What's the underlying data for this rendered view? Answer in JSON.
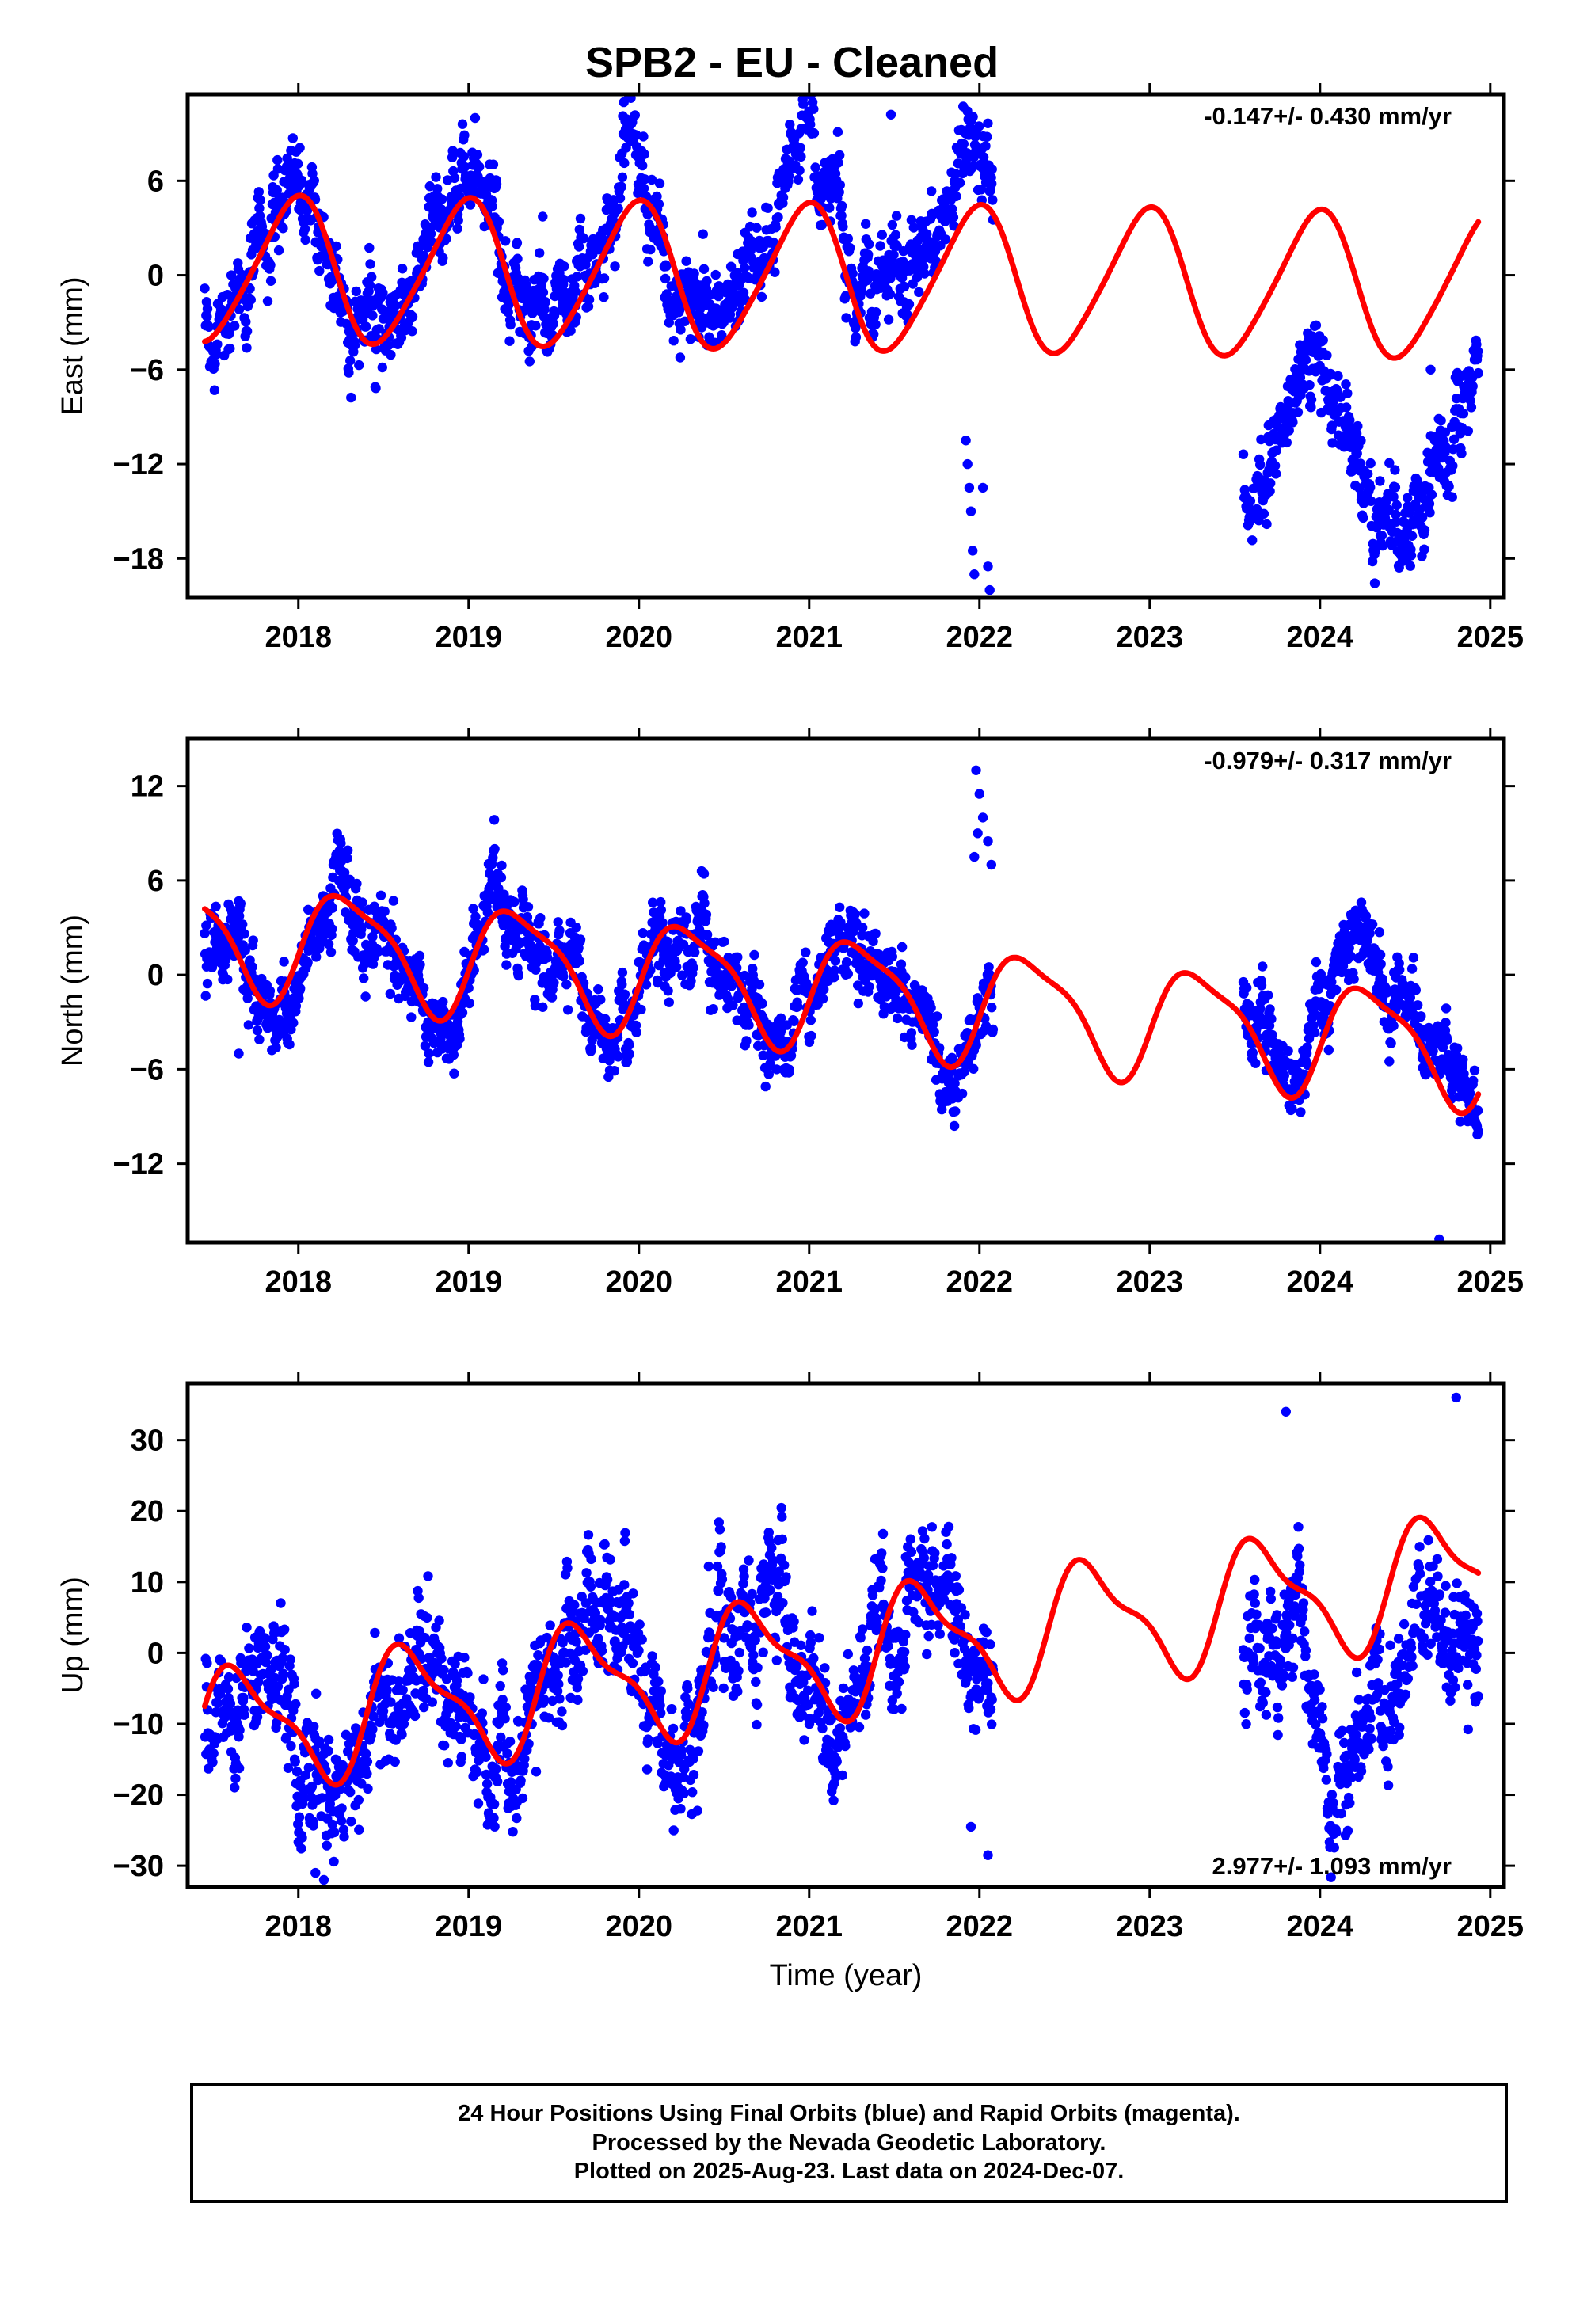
{
  "title": "SPB2  - EU - Cleaned",
  "footer": {
    "line1": "24 Hour Positions Using Final Orbits (blue) and Rapid Orbits (magenta).",
    "line2": "Processed by the Nevada Geodetic Laboratory.",
    "line3": "Plotted on 2025-Aug-23. Last data on 2024-Dec-07."
  },
  "colors": {
    "data": "#0000ff",
    "model": "#ff0000",
    "axis": "#000000"
  },
  "chart_data": [
    {
      "type": "scatter",
      "component": "east",
      "ylabel": "East (mm)",
      "xlabel": "",
      "rate_label": "-0.147+/- 0.430 mm/yr",
      "rate_position": "top-right",
      "xlim": [
        2017.35,
        2025.08
      ],
      "ylim": [
        -20.5,
        11.5
      ],
      "xticks": [
        2018,
        2019,
        2020,
        2021,
        2022,
        2023,
        2024,
        2025
      ],
      "yticks": [
        -18,
        -12,
        -6,
        0,
        6
      ],
      "series": [
        {
          "kind": "points",
          "segments": [
            {
              "start": 2017.45,
              "end": 2022.08,
              "offset": 0.0,
              "amp1": 4.5,
              "phase": 1.8,
              "amp2": 0.8,
              "drift": 0.6,
              "noise": 1.8
            },
            {
              "start": 2023.55,
              "end": 2024.93,
              "offset": -11.2,
              "amp1": 4.5,
              "phase": 1.8,
              "amp2": 0.8,
              "drift": -0.147,
              "noise": 1.8
            }
          ],
          "outliers": [
            [
              2021.92,
              -10.5
            ],
            [
              2021.93,
              -12.0
            ],
            [
              2021.94,
              -13.5
            ],
            [
              2021.95,
              -15.0
            ],
            [
              2021.96,
              -17.5
            ],
            [
              2021.97,
              -19.0
            ],
            [
              2022.02,
              -13.5
            ],
            [
              2022.05,
              -18.5
            ],
            [
              2022.06,
              -20.0
            ],
            [
              2021.48,
              10.2
            ],
            [
              2024.65,
              -6.0
            ]
          ]
        },
        {
          "kind": "model",
          "start": 2017.45,
          "end": 2024.93,
          "offset": 0.35,
          "trend": -0.147,
          "amp1": 4.55,
          "phase": 1.72,
          "amp2": 0.6,
          "phase2": 0.5
        }
      ]
    },
    {
      "type": "scatter",
      "component": "north",
      "ylabel": "North (mm)",
      "xlabel": "",
      "rate_label": "-0.979+/- 0.317 mm/yr",
      "rate_position": "top-right",
      "xlim": [
        2017.35,
        2025.08
      ],
      "ylim": [
        -17.0,
        15.0
      ],
      "xticks": [
        2018,
        2019,
        2020,
        2021,
        2022,
        2023,
        2024,
        2025
      ],
      "yticks": [
        -12,
        -6,
        0,
        6,
        12
      ],
      "series": [
        {
          "kind": "points",
          "segments": [
            {
              "start": 2017.45,
              "end": 2022.08,
              "offset": 2.3,
              "amp1": 3.3,
              "phase": -0.2,
              "amp2": 0.9,
              "drift": -0.98,
              "noise": 1.6
            },
            {
              "start": 2023.55,
              "end": 2024.93,
              "offset": -1.5,
              "amp1": 3.5,
              "phase": -0.2,
              "amp2": 0.9,
              "drift": -0.98,
              "noise": 1.6
            }
          ],
          "outliers": [
            [
              2021.98,
              13.0
            ],
            [
              2022.0,
              11.5
            ],
            [
              2022.02,
              10.0
            ],
            [
              2022.05,
              8.5
            ],
            [
              2021.99,
              9.0
            ],
            [
              2022.07,
              7.0
            ],
            [
              2021.97,
              7.5
            ],
            [
              2024.7,
              -16.8
            ],
            [
              2017.65,
              -5.0
            ]
          ]
        },
        {
          "kind": "model",
          "start": 2017.45,
          "end": 2024.93,
          "offset": 2.6,
          "trend": -0.979,
          "amp1": 3.4,
          "phase": -0.3,
          "amp2": 0.9,
          "phase2": 0.2
        }
      ]
    },
    {
      "type": "scatter",
      "component": "up",
      "ylabel": "Up (mm)",
      "xlabel": "Time (year)",
      "rate_label": "2.977+/- 1.093 mm/yr",
      "rate_position": "bottom-right",
      "xlim": [
        2017.35,
        2025.08
      ],
      "ylim": [
        -33.0,
        38.0
      ],
      "xticks": [
        2018,
        2019,
        2020,
        2021,
        2022,
        2023,
        2024,
        2025
      ],
      "yticks": [
        -30,
        -20,
        -10,
        0,
        10,
        20,
        30
      ],
      "series": [
        {
          "kind": "points",
          "segments": [
            {
              "start": 2017.45,
              "end": 2022.08,
              "offset": -11.5,
              "amp1": 8.5,
              "phase": 3.6,
              "amp2": 2.0,
              "drift": 2.98,
              "noise": 5.5
            },
            {
              "start": 2023.55,
              "end": 2024.93,
              "offset": -7.0,
              "amp1": 8.5,
              "phase": 3.6,
              "amp2": 2.0,
              "drift": 2.98,
              "noise": 5.5
            }
          ],
          "outliers": [
            [
              2018.1,
              -31.0
            ],
            [
              2018.15,
              -32.0
            ],
            [
              2021.95,
              -24.5
            ],
            [
              2022.05,
              -28.5
            ],
            [
              2023.8,
              34.0
            ],
            [
              2024.8,
              36.0
            ]
          ]
        },
        {
          "kind": "model",
          "start": 2017.45,
          "end": 2024.93,
          "offset": -11.2,
          "trend": 2.977,
          "amp1": 8.0,
          "phase": 3.7,
          "amp2": 2.8,
          "phase2": 1.3
        }
      ]
    }
  ]
}
